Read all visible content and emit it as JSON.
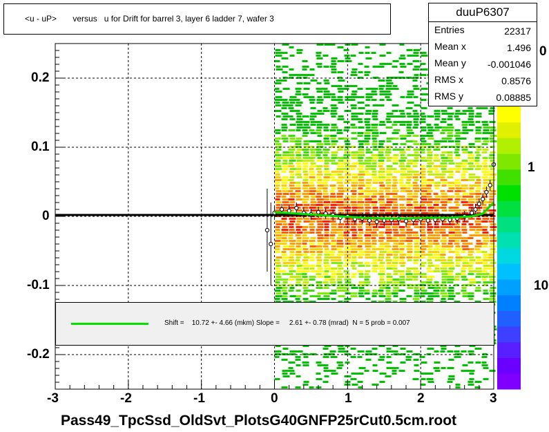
{
  "title": "<u - uP>       versus   u for Drift for barrel 3, layer 6 ladder 7, wafer 3",
  "stats": {
    "name": "duuP6307",
    "rows": [
      {
        "k": "Entries",
        "v": "22317"
      },
      {
        "k": "Mean x",
        "v": "1.496"
      },
      {
        "k": "Mean y",
        "v": "-0.001046"
      },
      {
        "k": "RMS x",
        "v": "0.8576"
      },
      {
        "k": "RMS y",
        "v": "0.08885"
      }
    ]
  },
  "fit": {
    "text": "Shift =    10.72 +- 4.66 (mkm) Slope =     2.61 +- 0.78 (mrad)  N = 5 prob = 0.007",
    "color": "#00e000"
  },
  "xtitle": "Pass49_TpcSsd_OldSvt_PlotsG40GNFP25rCut0.5cm.root",
  "x_ticks": [
    "-3",
    "-2",
    "-1",
    "0",
    "1",
    "2",
    "3"
  ],
  "y_ticks": [
    "0.2",
    "0.1",
    "0",
    "-0.1",
    "-0.2"
  ],
  "z_ticks": [
    "0",
    "1",
    "10"
  ],
  "chart_data": {
    "type": "heatmap",
    "title": "<u - uP>       versus   u for Drift for barrel 3, layer 6 ladder 7, wafer 3",
    "xlabel": "",
    "ylabel": "",
    "xlim": [
      -3,
      3
    ],
    "ylim": [
      -0.25,
      0.25
    ],
    "grid": true,
    "density_band": {
      "x_range": [
        0,
        3
      ],
      "y_center": 0.0,
      "y_core_halfwidth": 0.05
    },
    "profile_x": [
      -0.1,
      -0.05,
      0.0,
      0.1,
      0.2,
      0.3,
      0.4,
      0.5,
      0.6,
      0.7,
      0.8,
      0.9,
      1.0,
      1.1,
      1.2,
      1.3,
      1.4,
      1.5,
      1.6,
      1.7,
      1.8,
      1.9,
      2.0,
      2.1,
      2.2,
      2.3,
      2.4,
      2.5,
      2.6,
      2.7,
      2.75,
      2.8,
      2.85,
      2.9,
      2.95,
      3.0
    ],
    "profile_y": [
      -0.02,
      -0.04,
      0.005,
      0.01,
      0.008,
      0.012,
      0.005,
      0.003,
      0.006,
      0.004,
      0.002,
      -0.002,
      0.0,
      -0.004,
      -0.003,
      -0.006,
      -0.008,
      -0.006,
      -0.005,
      -0.004,
      -0.007,
      -0.005,
      -0.004,
      -0.006,
      -0.005,
      -0.004,
      -0.005,
      -0.003,
      0.0,
      0.005,
      0.01,
      0.018,
      0.025,
      0.035,
      0.045,
      0.075
    ],
    "fit_line": {
      "x": [
        -3,
        3
      ],
      "y": [
        0.002,
        0.002
      ]
    },
    "fit_curve_x": [
      0.0,
      0.3,
      0.6,
      0.9,
      1.2,
      1.5,
      1.8,
      2.1,
      2.4,
      2.7,
      2.85,
      3.0
    ],
    "fit_curve_y": [
      0.006,
      0.004,
      0.002,
      0.0,
      -0.002,
      -0.003,
      -0.003,
      -0.002,
      -0.002,
      0.0,
      0.004,
      0.02
    ],
    "z_axis": {
      "scale": "log",
      "ticks": [
        "0",
        "1",
        "10"
      ]
    }
  }
}
